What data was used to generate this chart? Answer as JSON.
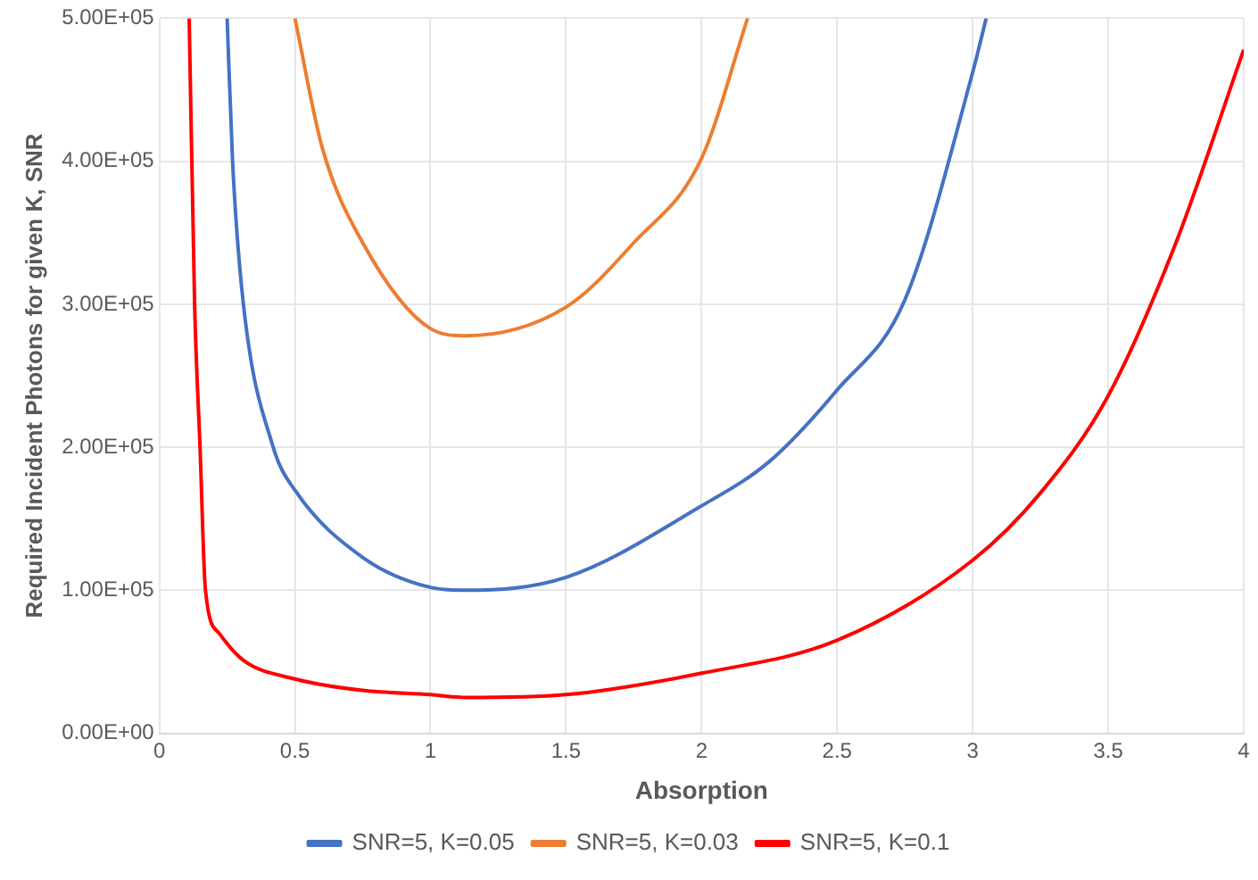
{
  "chart_data": {
    "type": "line",
    "xlabel": "Absorption",
    "ylabel": "Required Incident Photons for given K, SNR",
    "xlim": [
      0,
      4
    ],
    "xticks": [
      0,
      0.5,
      1,
      1.5,
      2,
      2.5,
      3,
      3.5,
      4
    ],
    "ylim": [
      0,
      500000
    ],
    "yticks": [
      {
        "value": 0,
        "label": "0.00E+00"
      },
      {
        "value": 100000,
        "label": "1.00E+05"
      },
      {
        "value": 200000,
        "label": "2.00E+05"
      },
      {
        "value": 300000,
        "label": "3.00E+05"
      },
      {
        "value": 400000,
        "label": "4.00E+05"
      },
      {
        "value": 500000,
        "label": "5.00E+05"
      }
    ],
    "grid": true,
    "legend": "bottom",
    "marker": "none",
    "line_style": "solid",
    "series": [
      {
        "name": "SNR=5, K=0.05",
        "color": "#4472c4",
        "x": [
          0.25,
          0.27,
          0.31,
          0.42,
          0.5,
          0.75,
          1,
          1.13,
          1.5,
          2,
          2.25,
          2.5,
          2.75,
          3,
          3.05
        ],
        "values": [
          500000,
          400000,
          300000,
          200000,
          170000,
          123000,
          102000,
          100000,
          109000,
          159000,
          190000,
          240000,
          303000,
          462000,
          500000
        ]
      },
      {
        "name": "SNR=5, K=0.03",
        "color": "#ed7d31",
        "x": [
          0.5,
          0.6,
          0.75,
          1,
          1.13,
          1.5,
          1.75,
          2,
          2.17
        ],
        "values": [
          500000,
          410000,
          343000,
          283000,
          278000,
          298000,
          343000,
          402000,
          500000
        ]
      },
      {
        "name": "SNR=5, K=0.1",
        "color": "#ff0000",
        "x": [
          0.11,
          0.13,
          0.15,
          0.17,
          0.22,
          0.31,
          0.5,
          0.75,
          1,
          1.13,
          1.5,
          2,
          2.5,
          3,
          3.25,
          3.5,
          3.75,
          4
        ],
        "values": [
          500000,
          300000,
          200000,
          100000,
          70000,
          51000,
          38000,
          30000,
          27000,
          25000,
          27000,
          42000,
          65000,
          121000,
          168000,
          236000,
          343000,
          478000
        ]
      }
    ]
  }
}
